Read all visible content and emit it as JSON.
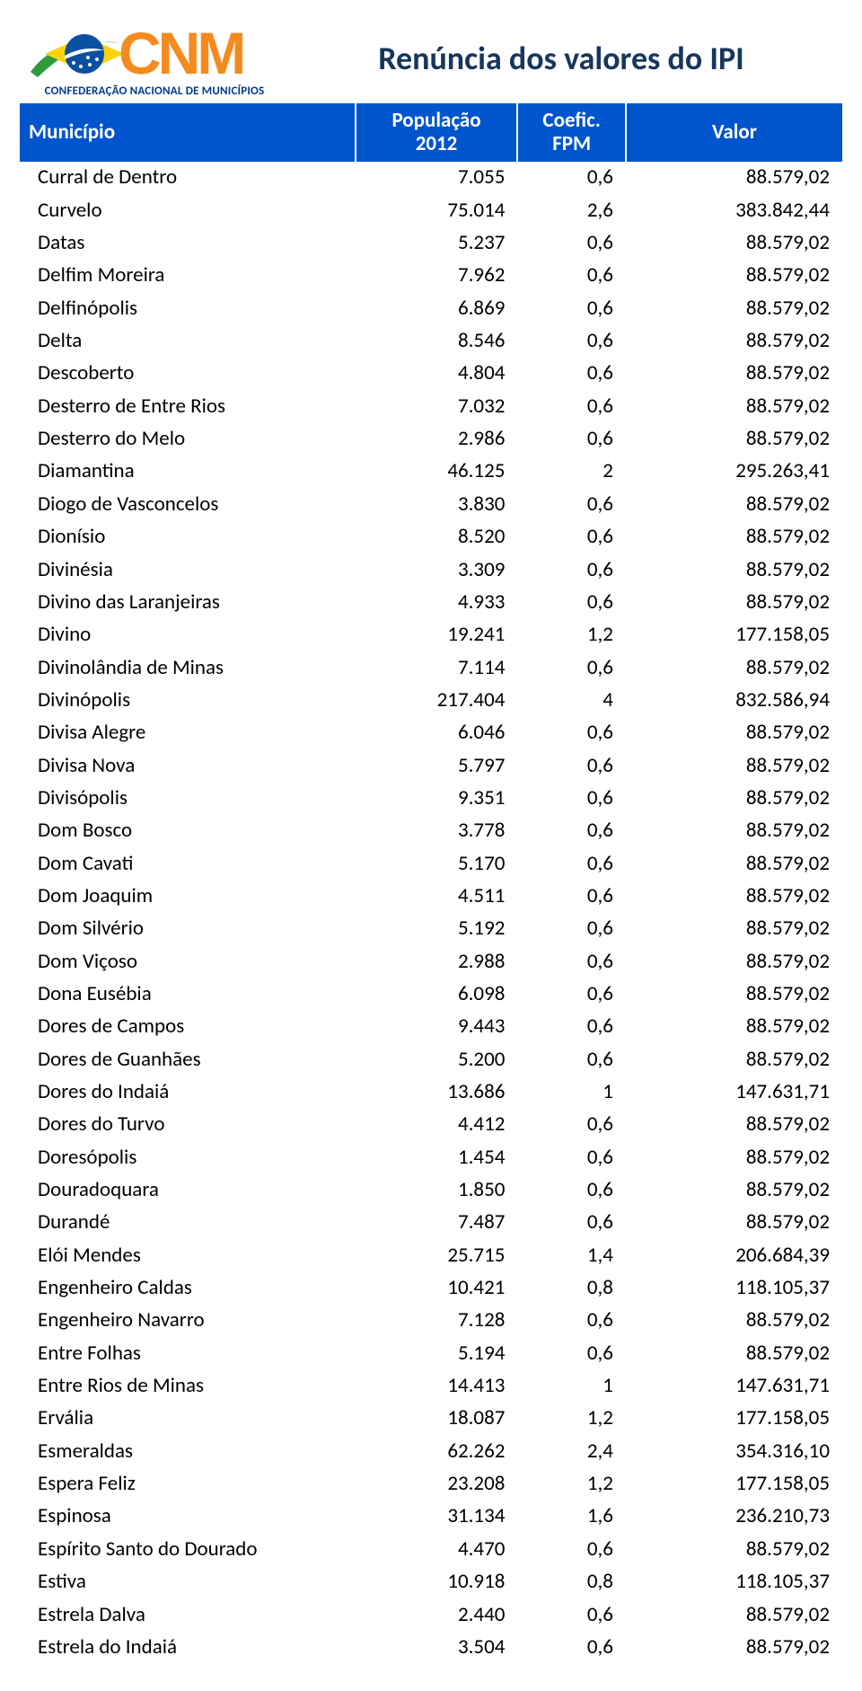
{
  "logo": {
    "letters": "CNM",
    "subtitle": "CONFEDERAÇÃO NACIONAL DE MUNICÍPIOS",
    "brand_orange": "#f58a1f",
    "brand_blue": "#0a50a1",
    "brand_green": "#2e9a3a",
    "brand_yellow": "#f9d40a"
  },
  "title": "Renúncia dos valores do IPI",
  "title_color": "#17365d",
  "table": {
    "header_bg": "#0055cc",
    "header_fg": "#ffffff",
    "columns": [
      {
        "label": "Município",
        "align": "left"
      },
      {
        "label_line1": "População",
        "label_line2": "2012",
        "align": "center"
      },
      {
        "label_line1": "Coefic.",
        "label_line2": "FPM",
        "align": "center"
      },
      {
        "label": "Valor",
        "align": "center"
      }
    ],
    "rows": [
      {
        "mun": "Curral de Dentro",
        "pop": "7.055",
        "coef": "0,6",
        "val": "88.579,02"
      },
      {
        "mun": "Curvelo",
        "pop": "75.014",
        "coef": "2,6",
        "val": "383.842,44"
      },
      {
        "mun": "Datas",
        "pop": "5.237",
        "coef": "0,6",
        "val": "88.579,02"
      },
      {
        "mun": "Delfim Moreira",
        "pop": "7.962",
        "coef": "0,6",
        "val": "88.579,02"
      },
      {
        "mun": "Delfinópolis",
        "pop": "6.869",
        "coef": "0,6",
        "val": "88.579,02"
      },
      {
        "mun": "Delta",
        "pop": "8.546",
        "coef": "0,6",
        "val": "88.579,02"
      },
      {
        "mun": "Descoberto",
        "pop": "4.804",
        "coef": "0,6",
        "val": "88.579,02"
      },
      {
        "mun": "Desterro de Entre Rios",
        "pop": "7.032",
        "coef": "0,6",
        "val": "88.579,02"
      },
      {
        "mun": "Desterro do Melo",
        "pop": "2.986",
        "coef": "0,6",
        "val": "88.579,02"
      },
      {
        "mun": "Diamantina",
        "pop": "46.125",
        "coef": "2",
        "val": "295.263,41"
      },
      {
        "mun": "Diogo de Vasconcelos",
        "pop": "3.830",
        "coef": "0,6",
        "val": "88.579,02"
      },
      {
        "mun": "Dionísio",
        "pop": "8.520",
        "coef": "0,6",
        "val": "88.579,02"
      },
      {
        "mun": "Divinésia",
        "pop": "3.309",
        "coef": "0,6",
        "val": "88.579,02"
      },
      {
        "mun": "Divino das Laranjeiras",
        "pop": "4.933",
        "coef": "0,6",
        "val": "88.579,02"
      },
      {
        "mun": "Divino",
        "pop": "19.241",
        "coef": "1,2",
        "val": "177.158,05"
      },
      {
        "mun": "Divinolândia de Minas",
        "pop": "7.114",
        "coef": "0,6",
        "val": "88.579,02"
      },
      {
        "mun": "Divinópolis",
        "pop": "217.404",
        "coef": "4",
        "val": "832.586,94"
      },
      {
        "mun": "Divisa Alegre",
        "pop": "6.046",
        "coef": "0,6",
        "val": "88.579,02"
      },
      {
        "mun": "Divisa Nova",
        "pop": "5.797",
        "coef": "0,6",
        "val": "88.579,02"
      },
      {
        "mun": "Divisópolis",
        "pop": "9.351",
        "coef": "0,6",
        "val": "88.579,02"
      },
      {
        "mun": "Dom Bosco",
        "pop": "3.778",
        "coef": "0,6",
        "val": "88.579,02"
      },
      {
        "mun": "Dom Cavati",
        "pop": "5.170",
        "coef": "0,6",
        "val": "88.579,02"
      },
      {
        "mun": "Dom Joaquim",
        "pop": "4.511",
        "coef": "0,6",
        "val": "88.579,02"
      },
      {
        "mun": "Dom Silvério",
        "pop": "5.192",
        "coef": "0,6",
        "val": "88.579,02"
      },
      {
        "mun": "Dom Viçoso",
        "pop": "2.988",
        "coef": "0,6",
        "val": "88.579,02"
      },
      {
        "mun": "Dona Eusébia",
        "pop": "6.098",
        "coef": "0,6",
        "val": "88.579,02"
      },
      {
        "mun": "Dores de Campos",
        "pop": "9.443",
        "coef": "0,6",
        "val": "88.579,02"
      },
      {
        "mun": "Dores de Guanhães",
        "pop": "5.200",
        "coef": "0,6",
        "val": "88.579,02"
      },
      {
        "mun": "Dores do Indaiá",
        "pop": "13.686",
        "coef": "1",
        "val": "147.631,71"
      },
      {
        "mun": "Dores do Turvo",
        "pop": "4.412",
        "coef": "0,6",
        "val": "88.579,02"
      },
      {
        "mun": "Doresópolis",
        "pop": "1.454",
        "coef": "0,6",
        "val": "88.579,02"
      },
      {
        "mun": "Douradoquara",
        "pop": "1.850",
        "coef": "0,6",
        "val": "88.579,02"
      },
      {
        "mun": "Durandé",
        "pop": "7.487",
        "coef": "0,6",
        "val": "88.579,02"
      },
      {
        "mun": "Elói Mendes",
        "pop": "25.715",
        "coef": "1,4",
        "val": "206.684,39"
      },
      {
        "mun": "Engenheiro Caldas",
        "pop": "10.421",
        "coef": "0,8",
        "val": "118.105,37"
      },
      {
        "mun": "Engenheiro Navarro",
        "pop": "7.128",
        "coef": "0,6",
        "val": "88.579,02"
      },
      {
        "mun": "Entre Folhas",
        "pop": "5.194",
        "coef": "0,6",
        "val": "88.579,02"
      },
      {
        "mun": "Entre Rios de Minas",
        "pop": "14.413",
        "coef": "1",
        "val": "147.631,71"
      },
      {
        "mun": "Ervália",
        "pop": "18.087",
        "coef": "1,2",
        "val": "177.158,05"
      },
      {
        "mun": "Esmeraldas",
        "pop": "62.262",
        "coef": "2,4",
        "val": "354.316,10"
      },
      {
        "mun": "Espera Feliz",
        "pop": "23.208",
        "coef": "1,2",
        "val": "177.158,05"
      },
      {
        "mun": "Espinosa",
        "pop": "31.134",
        "coef": "1,6",
        "val": "236.210,73"
      },
      {
        "mun": "Espírito Santo do Dourado",
        "pop": "4.470",
        "coef": "0,6",
        "val": "88.579,02"
      },
      {
        "mun": "Estiva",
        "pop": "10.918",
        "coef": "0,8",
        "val": "118.105,37"
      },
      {
        "mun": "Estrela Dalva",
        "pop": "2.440",
        "coef": "0,6",
        "val": "88.579,02"
      },
      {
        "mun": "Estrela do Indaiá",
        "pop": "3.504",
        "coef": "0,6",
        "val": "88.579,02"
      }
    ]
  }
}
